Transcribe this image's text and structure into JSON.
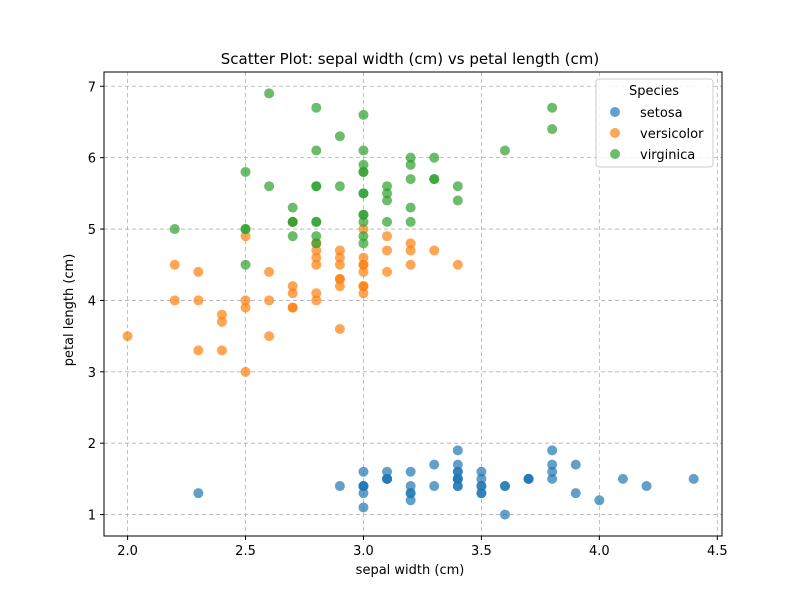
{
  "chart_data": {
    "type": "scatter",
    "title": "Scatter Plot: sepal width (cm) vs petal length (cm)",
    "xlabel": "sepal width (cm)",
    "ylabel": "petal length (cm)",
    "xlim": [
      1.9,
      4.52
    ],
    "ylim": [
      0.7,
      7.2
    ],
    "xticks": [
      2.0,
      2.5,
      3.0,
      3.5,
      4.0,
      4.5
    ],
    "xtick_labels": [
      "2.0",
      "2.5",
      "3.0",
      "3.5",
      "4.0",
      "4.5"
    ],
    "yticks": [
      1,
      2,
      3,
      4,
      5,
      6,
      7
    ],
    "ytick_labels": [
      "1",
      "2",
      "3",
      "4",
      "5",
      "6",
      "7"
    ],
    "grid": true,
    "legend": {
      "title": "Species",
      "placement": "top-right"
    },
    "series": [
      {
        "name": "setosa",
        "color": "#1f77b4",
        "points": [
          [
            3.5,
            1.4
          ],
          [
            3.0,
            1.4
          ],
          [
            3.2,
            1.3
          ],
          [
            3.1,
            1.5
          ],
          [
            3.6,
            1.4
          ],
          [
            3.9,
            1.7
          ],
          [
            3.4,
            1.4
          ],
          [
            3.4,
            1.5
          ],
          [
            2.9,
            1.4
          ],
          [
            3.1,
            1.5
          ],
          [
            3.7,
            1.5
          ],
          [
            3.4,
            1.6
          ],
          [
            3.0,
            1.4
          ],
          [
            3.0,
            1.1
          ],
          [
            4.0,
            1.2
          ],
          [
            4.4,
            1.5
          ],
          [
            3.9,
            1.3
          ],
          [
            3.5,
            1.4
          ],
          [
            3.8,
            1.7
          ],
          [
            3.8,
            1.5
          ],
          [
            3.4,
            1.7
          ],
          [
            3.7,
            1.5
          ],
          [
            3.6,
            1.0
          ],
          [
            3.3,
            1.7
          ],
          [
            3.4,
            1.9
          ],
          [
            3.0,
            1.6
          ],
          [
            3.4,
            1.6
          ],
          [
            3.5,
            1.5
          ],
          [
            3.4,
            1.4
          ],
          [
            3.2,
            1.6
          ],
          [
            3.1,
            1.6
          ],
          [
            3.4,
            1.5
          ],
          [
            4.1,
            1.5
          ],
          [
            4.2,
            1.4
          ],
          [
            3.1,
            1.5
          ],
          [
            3.2,
            1.2
          ],
          [
            3.5,
            1.3
          ],
          [
            3.6,
            1.4
          ],
          [
            3.0,
            1.3
          ],
          [
            3.4,
            1.5
          ],
          [
            3.5,
            1.3
          ],
          [
            2.3,
            1.3
          ],
          [
            3.2,
            1.3
          ],
          [
            3.5,
            1.6
          ],
          [
            3.8,
            1.9
          ],
          [
            3.0,
            1.4
          ],
          [
            3.8,
            1.6
          ],
          [
            3.2,
            1.4
          ],
          [
            3.7,
            1.5
          ],
          [
            3.3,
            1.4
          ]
        ]
      },
      {
        "name": "versicolor",
        "color": "#ff7f0e",
        "points": [
          [
            3.2,
            4.7
          ],
          [
            3.2,
            4.5
          ],
          [
            3.1,
            4.9
          ],
          [
            2.3,
            4.0
          ],
          [
            2.8,
            4.6
          ],
          [
            2.8,
            4.5
          ],
          [
            3.3,
            4.7
          ],
          [
            2.4,
            3.3
          ],
          [
            2.9,
            4.6
          ],
          [
            2.7,
            3.9
          ],
          [
            2.0,
            3.5
          ],
          [
            3.0,
            4.2
          ],
          [
            2.2,
            4.0
          ],
          [
            2.9,
            4.7
          ],
          [
            2.9,
            3.6
          ],
          [
            3.1,
            4.4
          ],
          [
            3.0,
            4.5
          ],
          [
            2.7,
            4.1
          ],
          [
            2.2,
            4.5
          ],
          [
            2.5,
            3.9
          ],
          [
            3.2,
            4.8
          ],
          [
            2.8,
            4.0
          ],
          [
            2.5,
            4.9
          ],
          [
            2.8,
            4.7
          ],
          [
            2.9,
            4.3
          ],
          [
            3.0,
            4.4
          ],
          [
            2.8,
            4.8
          ],
          [
            3.0,
            5.0
          ],
          [
            2.9,
            4.5
          ],
          [
            2.6,
            3.5
          ],
          [
            2.4,
            3.8
          ],
          [
            2.4,
            3.7
          ],
          [
            2.7,
            3.9
          ],
          [
            2.7,
            5.1
          ],
          [
            3.0,
            4.5
          ],
          [
            3.4,
            4.5
          ],
          [
            3.1,
            4.7
          ],
          [
            2.3,
            4.4
          ],
          [
            3.0,
            4.1
          ],
          [
            2.5,
            4.0
          ],
          [
            2.6,
            4.4
          ],
          [
            3.0,
            4.6
          ],
          [
            2.6,
            4.0
          ],
          [
            2.3,
            3.3
          ],
          [
            2.7,
            4.2
          ],
          [
            3.0,
            4.2
          ],
          [
            2.9,
            4.2
          ],
          [
            2.9,
            4.3
          ],
          [
            2.5,
            3.0
          ],
          [
            2.8,
            4.1
          ]
        ]
      },
      {
        "name": "virginica",
        "color": "#2ca02c",
        "points": [
          [
            3.3,
            6.0
          ],
          [
            2.7,
            5.1
          ],
          [
            3.0,
            5.9
          ],
          [
            2.9,
            5.6
          ],
          [
            3.0,
            5.8
          ],
          [
            3.0,
            6.6
          ],
          [
            2.5,
            4.5
          ],
          [
            2.9,
            6.3
          ],
          [
            2.5,
            5.8
          ],
          [
            3.6,
            6.1
          ],
          [
            3.2,
            5.1
          ],
          [
            2.7,
            5.3
          ],
          [
            3.0,
            5.5
          ],
          [
            2.5,
            5.0
          ],
          [
            2.8,
            5.1
          ],
          [
            3.2,
            5.3
          ],
          [
            3.0,
            5.5
          ],
          [
            3.8,
            6.7
          ],
          [
            2.6,
            6.9
          ],
          [
            2.2,
            5.0
          ],
          [
            3.2,
            5.7
          ],
          [
            2.8,
            4.9
          ],
          [
            2.8,
            6.7
          ],
          [
            2.7,
            4.9
          ],
          [
            3.3,
            5.7
          ],
          [
            3.2,
            6.0
          ],
          [
            2.8,
            4.8
          ],
          [
            3.0,
            4.9
          ],
          [
            2.8,
            5.6
          ],
          [
            3.0,
            5.8
          ],
          [
            2.8,
            6.1
          ],
          [
            3.8,
            6.4
          ],
          [
            2.8,
            5.6
          ],
          [
            2.8,
            5.1
          ],
          [
            2.6,
            5.6
          ],
          [
            3.0,
            6.1
          ],
          [
            3.4,
            5.6
          ],
          [
            3.1,
            5.5
          ],
          [
            3.0,
            4.8
          ],
          [
            3.1,
            5.4
          ],
          [
            3.1,
            5.6
          ],
          [
            3.1,
            5.1
          ],
          [
            2.7,
            5.1
          ],
          [
            3.2,
            5.9
          ],
          [
            3.3,
            5.7
          ],
          [
            3.0,
            5.2
          ],
          [
            2.5,
            5.0
          ],
          [
            3.0,
            5.2
          ],
          [
            3.4,
            5.4
          ],
          [
            3.0,
            5.1
          ]
        ]
      }
    ]
  }
}
